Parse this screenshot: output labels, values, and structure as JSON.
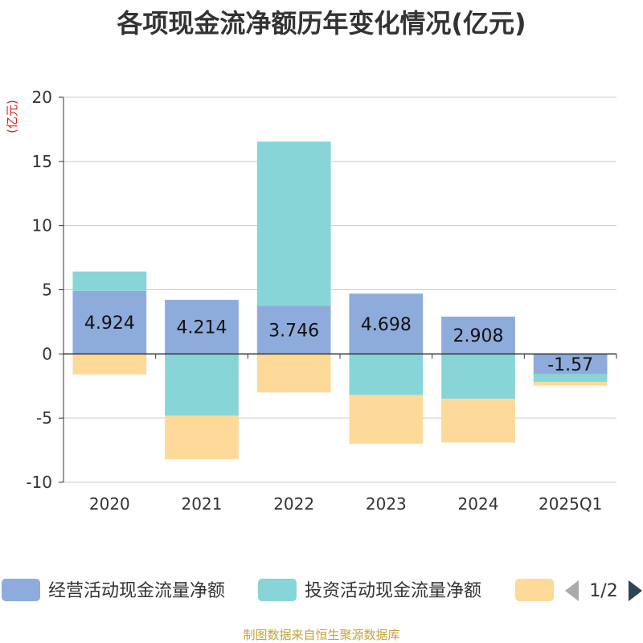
{
  "chart_data": {
    "type": "bar",
    "stacked": true,
    "title": "各项现金流净额历年变化情况(亿元)",
    "ylabel": "(亿元)",
    "ylim": [
      -10,
      20
    ],
    "yticks": [
      20,
      15,
      10,
      5,
      0,
      -5,
      -10
    ],
    "categories": [
      "2020",
      "2021",
      "2022",
      "2023",
      "2024",
      "2025Q1"
    ],
    "series": [
      {
        "name": "经营活动现金流量净额",
        "color": "#8eacdb",
        "values": [
          4.924,
          4.214,
          3.746,
          4.698,
          2.908,
          -1.57
        ],
        "labels": [
          "4.924",
          "4.214",
          "3.746",
          "4.698",
          "2.908",
          "-1.57"
        ]
      },
      {
        "name": "投资活动现金流量净额",
        "color": "#88d5d8",
        "values": [
          1.5,
          -4.8,
          12.8,
          -3.2,
          -3.5,
          -0.6
        ]
      },
      {
        "name": "",
        "color": "#fdd99a",
        "values": [
          -1.6,
          -3.4,
          -3.0,
          -3.8,
          -3.4,
          -0.3
        ]
      }
    ],
    "legend": {
      "page": "1/2"
    }
  },
  "source": "制图数据来自恒生聚源数据库"
}
